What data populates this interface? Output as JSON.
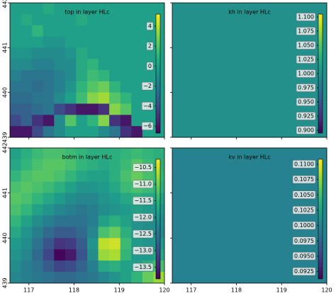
{
  "chart_data": [
    {
      "type": "heatmap",
      "title": "top in layer HLc",
      "colormap": "viridis",
      "xlim": [
        116.58,
        120
      ],
      "ylim": [
        439,
        442
      ],
      "xticks": [
        117,
        118,
        119,
        120
      ],
      "yticks": [
        439,
        440,
        441,
        442
      ],
      "clim": [
        -6.7,
        5.2
      ],
      "cticks": [
        4,
        2,
        0,
        {
          "value": -2,
          "label": "−2"
        },
        {
          "value": -4,
          "label": "−4"
        },
        {
          "value": -6,
          "label": "−6"
        }
      ],
      "values": [
        [
          0,
          0,
          0,
          0.5,
          0,
          0,
          0,
          0,
          0,
          0,
          0,
          0,
          0,
          0
        ],
        [
          0,
          0.5,
          0,
          0,
          0,
          0,
          0.5,
          0,
          0,
          0,
          0,
          0,
          0,
          0
        ],
        [
          0,
          0,
          1,
          0,
          0,
          0,
          0,
          0,
          0,
          0,
          0,
          0,
          0,
          0
        ],
        [
          0,
          0,
          0,
          -0.5,
          -0.5,
          0,
          0,
          0,
          0,
          0,
          0,
          0,
          0,
          0
        ],
        [
          -0.5,
          -0.5,
          -1,
          -1,
          -1,
          -0.5,
          0.5,
          0,
          0,
          0,
          0,
          0,
          0,
          0
        ],
        [
          -1,
          -1,
          -1.5,
          -1.5,
          -1,
          -1,
          0.5,
          1,
          0,
          0,
          0,
          0,
          0,
          0
        ],
        [
          -1.5,
          -2,
          -2,
          -2,
          -1.5,
          -1,
          0.5,
          1.5,
          1,
          0,
          0,
          0,
          0,
          0
        ],
        [
          -2,
          -2,
          -2.5,
          -2,
          -1.5,
          -0.5,
          1,
          2,
          2.5,
          1,
          0,
          0,
          0,
          0
        ],
        [
          -2.5,
          -2.5,
          -2,
          -2,
          -1,
          0,
          1.5,
          3,
          3.5,
          2,
          1,
          0,
          0,
          0
        ],
        [
          -3,
          -3,
          -2.5,
          -2,
          -4,
          -5,
          -6,
          -6,
          -5,
          3,
          2,
          0,
          0,
          0
        ],
        [
          -4,
          -3,
          -5,
          -6,
          -1,
          2,
          0,
          1,
          3,
          -5,
          -6,
          0,
          0,
          0
        ],
        [
          -6,
          -6,
          -4,
          -2,
          -1,
          0,
          0,
          0,
          -1,
          -2,
          -5,
          -6,
          0,
          0
        ]
      ]
    },
    {
      "type": "heatmap",
      "title": "kh in layer HLc",
      "colormap": "viridis",
      "xlim": [
        116.58,
        120
      ],
      "ylim": [
        439,
        442
      ],
      "xticks": [
        117,
        118,
        119,
        120
      ],
      "yticks": [
        439,
        440,
        441,
        442
      ],
      "clim": [
        0.895,
        1.105
      ],
      "cticks": [
        {
          "value": 1.1,
          "label": "1.100"
        },
        {
          "value": 1.075,
          "label": "1.075"
        },
        {
          "value": 1.05,
          "label": "1.050"
        },
        {
          "value": 1.025,
          "label": "1.025"
        },
        {
          "value": 1.0,
          "label": "1.000"
        },
        {
          "value": 0.975,
          "label": "0.975"
        },
        {
          "value": 0.95,
          "label": "0.950"
        },
        {
          "value": 0.925,
          "label": "0.925"
        },
        {
          "value": 0.9,
          "label": "0.900"
        }
      ],
      "values": [
        [
          1.0
        ]
      ]
    },
    {
      "type": "heatmap",
      "title": "botm in layer HLc",
      "colormap": "viridis",
      "xlim": [
        116.58,
        120
      ],
      "ylim": [
        439,
        442
      ],
      "xticks": [
        117,
        118,
        119,
        120
      ],
      "yticks": [
        439,
        440,
        441,
        442
      ],
      "clim": [
        -13.85,
        -10.25
      ],
      "cticks": [
        {
          "value": -10.5,
          "label": "−10.5"
        },
        {
          "value": -11,
          "label": "−11.0"
        },
        {
          "value": -11.5,
          "label": "−11.5"
        },
        {
          "value": -12,
          "label": "−12.0"
        },
        {
          "value": -12.5,
          "label": "−12.5"
        },
        {
          "value": -13,
          "label": "−13.0"
        },
        {
          "value": -13.5,
          "label": "−13.5"
        }
      ],
      "values": [
        [
          -11.8,
          -11.6,
          -11.4,
          -11.3,
          -11.3,
          -11.4,
          -11.5,
          -11.6,
          -11.6,
          -11.6,
          -11.5,
          -11.4,
          -11.5,
          -11.6
        ],
        [
          -11.7,
          -11.5,
          -11.3,
          -11.2,
          -11.2,
          -11.3,
          -11.5,
          -11.6,
          -11.7,
          -11.6,
          -11.4,
          -11.2,
          -11.4,
          -11.6
        ],
        [
          -11.5,
          -11.3,
          -11.2,
          -11.2,
          -11.3,
          -11.5,
          -11.7,
          -11.8,
          -11.8,
          -11.6,
          -11.3,
          -11.1,
          -11.3,
          -11.5
        ],
        [
          -11.3,
          -11.2,
          -11.3,
          -11.4,
          -11.6,
          -11.8,
          -12.0,
          -12.0,
          -11.9,
          -11.7,
          -11.4,
          -11.3,
          -11.4,
          -11.6
        ],
        [
          -11.2,
          -11.3,
          -11.5,
          -11.7,
          -11.9,
          -12.1,
          -12.2,
          -12.2,
          -12.0,
          -11.9,
          -11.7,
          -11.6,
          -11.7,
          -11.8
        ],
        [
          -11.3,
          -11.5,
          -11.8,
          -12.0,
          -12.2,
          -12.3,
          -12.4,
          -12.3,
          -12.1,
          -12.0,
          -11.9,
          -11.8,
          -11.9,
          -12.0
        ],
        [
          -11.5,
          -11.8,
          -12.1,
          -12.3,
          -12.5,
          -12.5,
          -12.5,
          -12.3,
          -11.8,
          -11.6,
          -11.8,
          -12.0,
          -12.1,
          -12.1
        ],
        [
          -11.7,
          -12.0,
          -12.3,
          -12.6,
          -12.8,
          -12.8,
          -12.6,
          -12.2,
          -11.3,
          -11.1,
          -11.6,
          -12.0,
          -12.1,
          -12.1
        ],
        [
          -11.9,
          -12.1,
          -12.5,
          -12.9,
          -13.3,
          -13.2,
          -12.8,
          -12.0,
          -10.6,
          -10.5,
          -11.4,
          -11.9,
          -12.0,
          -11.9
        ],
        [
          -12.0,
          -12.2,
          -12.6,
          -13.1,
          -13.8,
          -13.6,
          -12.9,
          -12.1,
          -10.8,
          -10.7,
          -11.5,
          -11.9,
          -11.9,
          -11.7
        ],
        [
          -12.1,
          -12.3,
          -12.5,
          -12.8,
          -13.1,
          -13.0,
          -12.7,
          -12.3,
          -11.7,
          -11.6,
          -11.8,
          -11.8,
          -11.6,
          -11.3
        ],
        [
          -12.2,
          -12.3,
          -12.4,
          -12.5,
          -12.6,
          -12.6,
          -12.5,
          -12.4,
          -12.2,
          -12.0,
          -11.8,
          -11.5,
          -11.1,
          -10.8
        ]
      ]
    },
    {
      "type": "heatmap",
      "title": "kv in layer HLc",
      "colormap": "viridis",
      "xlim": [
        116.58,
        120
      ],
      "ylim": [
        439,
        442
      ],
      "xticks": [
        117,
        118,
        119,
        120
      ],
      "yticks": [
        439,
        440,
        441,
        442
      ],
      "clim": [
        0.0913,
        0.1108
      ],
      "cticks": [
        {
          "value": 0.11,
          "label": "0.1100"
        },
        {
          "value": 0.1075,
          "label": "0.1075"
        },
        {
          "value": 0.105,
          "label": "0.1050"
        },
        {
          "value": 0.1025,
          "label": "0.1025"
        },
        {
          "value": 0.1,
          "label": "0.1000"
        },
        {
          "value": 0.0975,
          "label": "0.0975"
        },
        {
          "value": 0.095,
          "label": "0.0950"
        },
        {
          "value": 0.0925,
          "label": "0.0925"
        }
      ],
      "values": [
        [
          0.1
        ]
      ]
    }
  ]
}
